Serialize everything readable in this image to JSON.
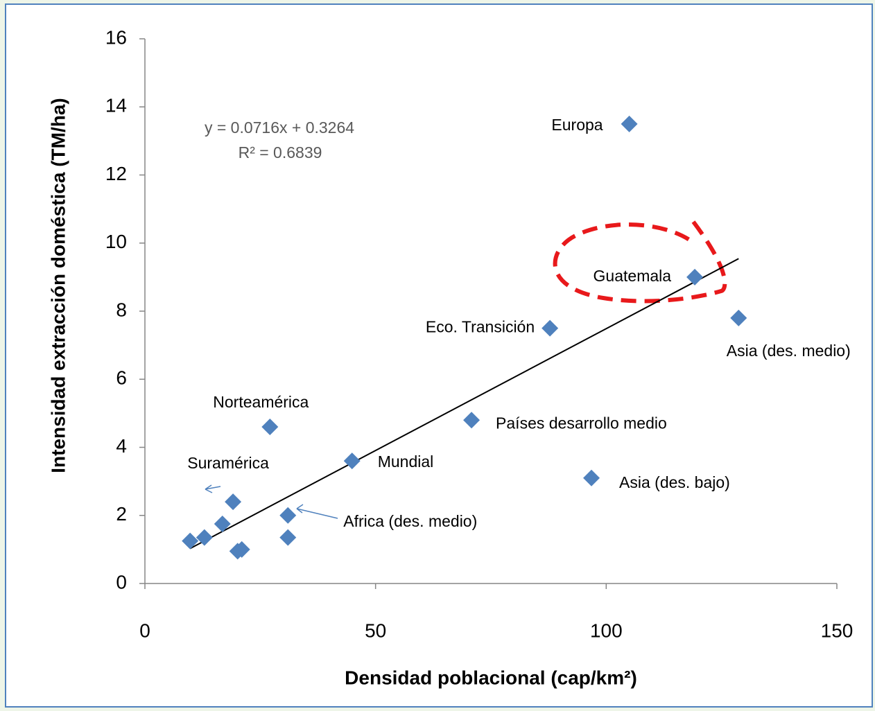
{
  "chart_data": {
    "type": "scatter",
    "xlabel": "Densidad poblacional (cap/km²)",
    "ylabel": "Intensidad extracción doméstica (TM/ha)",
    "x": [
      105,
      119.2,
      128.7,
      87.8,
      70.8,
      27.1,
      44.9,
      96.8,
      19.1,
      31.0,
      16.8,
      31.0,
      9.8,
      12.9,
      21.0,
      20.1
    ],
    "values": [
      13.5,
      9.0,
      7.8,
      7.5,
      4.8,
      4.6,
      3.6,
      3.1,
      2.4,
      2.0,
      1.75,
      1.35,
      1.25,
      1.35,
      1.0,
      0.95
    ],
    "labels": [
      "Europa",
      "Guatemala",
      "Asia (des. medio)",
      "Eco. Transición",
      "Países desarrollo medio",
      "Norteamérica",
      "Mundial",
      "Asia (des. bajo)",
      "Suramérica",
      "Africa (des. medio)",
      null,
      null,
      null,
      null,
      null,
      null
    ],
    "color": "#4f81bd",
    "xlim": [
      0,
      150
    ],
    "xticks": [
      0,
      50,
      100,
      150
    ],
    "ylim": [
      0,
      16
    ],
    "yticks": [
      0,
      2,
      4,
      6,
      8,
      10,
      12,
      14,
      16
    ],
    "grid": false,
    "trendline": {
      "slope": 0.0716,
      "intercept": 0.3264,
      "equation": "y = 0.0716x + 0.3264",
      "r2": "R² = 0.6839"
    }
  }
}
